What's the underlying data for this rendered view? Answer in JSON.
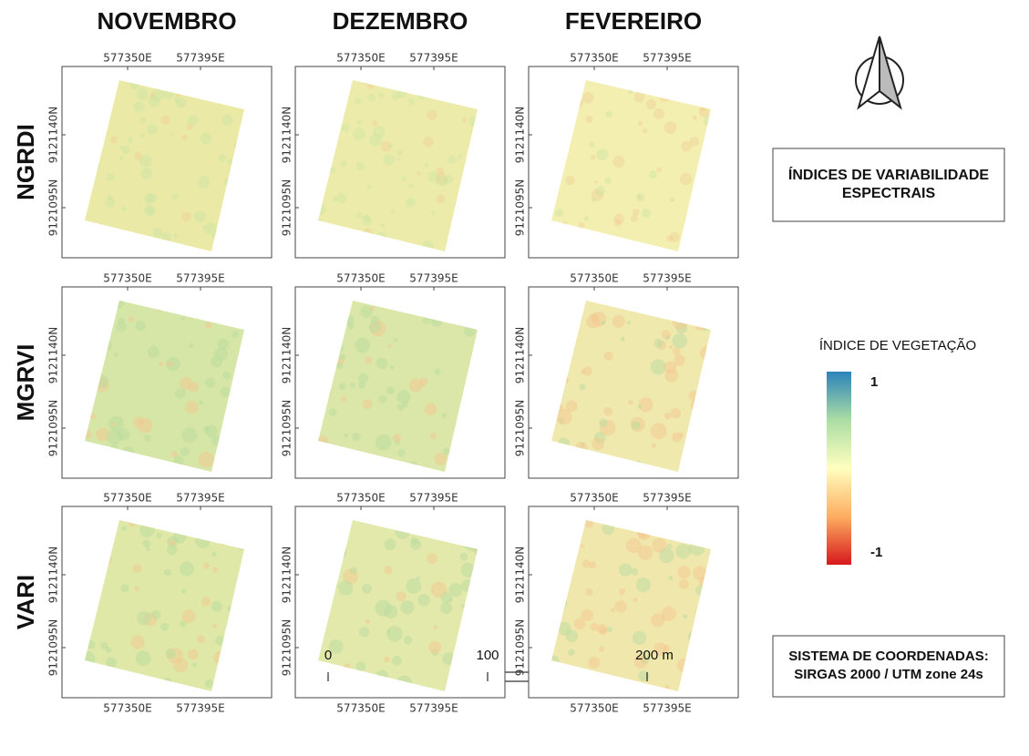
{
  "columns": [
    "NOVEMBRO",
    "DEZEMBRO",
    "FEVEREIRO"
  ],
  "rows": [
    "NGRDI",
    "MGRVI",
    "VARI"
  ],
  "panel_coords": {
    "x_labels": [
      "577350E",
      "577395E"
    ],
    "y_labels": [
      "9121140N",
      "9121095N"
    ]
  },
  "title_box": [
    "ÍNDICES DE VARIABILIDADE",
    "ESPECTRAIS"
  ],
  "legend": {
    "title": "ÍNDICE DE VEGETAÇÃO",
    "max": 1,
    "min": -1
  },
  "scale_bar": {
    "ticks": [
      0,
      100,
      {
        "value": 200,
        "label": "200 m"
      }
    ]
  },
  "crs_box": [
    "SISTEMA DE COORDENADAS:",
    "SIRGAS 2000 / UTM zone 24s"
  ]
}
